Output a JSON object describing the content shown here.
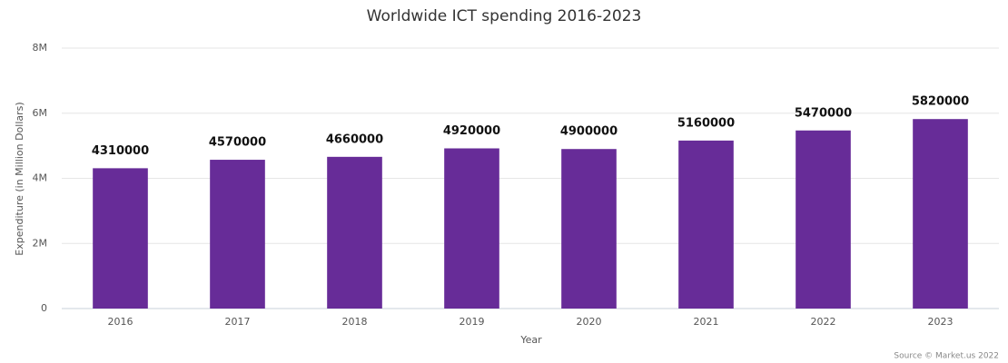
{
  "chart_data": {
    "type": "bar",
    "title": "Worldwide ICT spending 2016-2023",
    "x_label": "Year",
    "y_label": "Expenditure (in Million Dollars)",
    "source": "Source © Market.us 2022",
    "categories": [
      "2016",
      "2017",
      "2018",
      "2019",
      "2020",
      "2021",
      "2022",
      "2023"
    ],
    "values": [
      4310000,
      4570000,
      4660000,
      4920000,
      4900000,
      5160000,
      5470000,
      5820000
    ],
    "color": "#672c98",
    "ylim": [
      0,
      8000000
    ],
    "yticks": [
      0,
      {
        "value": 2000000,
        "label": "2M"
      },
      {
        "value": 4000000,
        "label": "4M"
      },
      {
        "value": 6000000,
        "label": "6M"
      },
      {
        "value": 8000000,
        "label": "8M"
      }
    ],
    "grid": true
  }
}
